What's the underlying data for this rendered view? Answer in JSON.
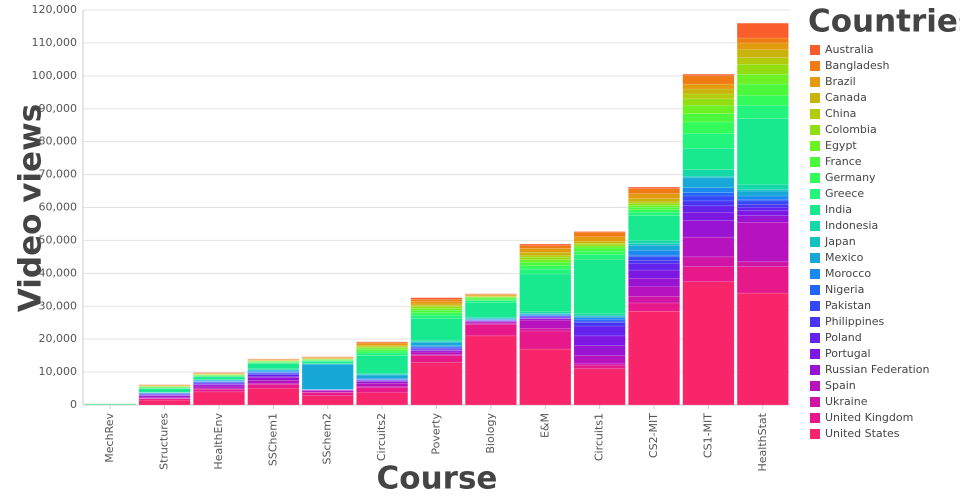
{
  "chart_data": {
    "type": "stacked_bar",
    "x_label": "Course",
    "y_label": "Video views",
    "legend_title": "Countries",
    "legend_position": "right",
    "grid": true,
    "categories": [
      "MechRev",
      "Structures",
      "HealthEnv",
      "SSChem1",
      "SSchem2",
      "Circuits2",
      "Poverty",
      "Biology",
      "E&M",
      "Circuits1",
      "CS2-MIT",
      "CS1-MIT",
      "HealthStat"
    ],
    "ylim": [
      0,
      120000
    ],
    "yticks": [
      0,
      {
        "value": 10000,
        "label": "10,000"
      },
      {
        "value": 20000,
        "label": "20,000"
      },
      {
        "value": 30000,
        "label": "30,000"
      },
      {
        "value": 40000,
        "label": "40,000"
      },
      {
        "value": 50000,
        "label": "50,000"
      },
      {
        "value": 60000,
        "label": "60,000"
      },
      {
        "value": 70000,
        "label": "70,000"
      },
      {
        "value": 80000,
        "label": "80,000"
      },
      {
        "value": 90000,
        "label": "90,000"
      },
      {
        "value": 100000,
        "label": "100,000"
      },
      {
        "value": 110000,
        "label": "110,000"
      },
      {
        "value": 120000,
        "label": "120,000"
      }
    ],
    "series": [
      {
        "name": "Australia",
        "color": "#f95d2c",
        "values": [
          0,
          50,
          100,
          100,
          100,
          200,
          500,
          100,
          500,
          300,
          500,
          500,
          4500
        ]
      },
      {
        "name": "Bangladesh",
        "color": "#f07a14",
        "values": [
          10,
          100,
          100,
          100,
          200,
          300,
          600,
          200,
          800,
          1200,
          1500,
          2500,
          1500
        ]
      },
      {
        "name": "Brazil",
        "color": "#e39a0f",
        "values": [
          10,
          200,
          200,
          200,
          200,
          600,
          800,
          300,
          1200,
          1500,
          1500,
          1500,
          2000
        ]
      },
      {
        "name": "Canada",
        "color": "#c9b40b",
        "values": [
          10,
          100,
          100,
          100,
          100,
          300,
          500,
          200,
          1000,
          600,
          1000,
          1500,
          2500
        ]
      },
      {
        "name": "China",
        "color": "#b2cc0b",
        "values": [
          0,
          50,
          50,
          100,
          50,
          200,
          300,
          100,
          500,
          300,
          500,
          1500,
          2000
        ]
      },
      {
        "name": "Colombia",
        "color": "#93de12",
        "values": [
          10,
          100,
          100,
          100,
          100,
          300,
          500,
          200,
          800,
          500,
          500,
          2000,
          3000
        ]
      },
      {
        "name": "Egypt",
        "color": "#6cf124",
        "values": [
          10,
          100,
          100,
          100,
          100,
          400,
          600,
          200,
          800,
          600,
          600,
          2500,
          3000
        ]
      },
      {
        "name": "France",
        "color": "#4bf83b",
        "values": [
          20,
          200,
          200,
          200,
          200,
          500,
          800,
          400,
          1000,
          1000,
          800,
          2500,
          3500
        ]
      },
      {
        "name": "Germany",
        "color": "#33fb5a",
        "values": [
          20,
          200,
          200,
          200,
          200,
          600,
          800,
          400,
          1000,
          1000,
          800,
          3500,
          3000
        ]
      },
      {
        "name": "Greece",
        "color": "#23f47c",
        "values": [
          30,
          200,
          200,
          300,
          300,
          800,
          1000,
          500,
          1500,
          1500,
          1000,
          4500,
          4000
        ]
      },
      {
        "name": "India",
        "color": "#18e88e",
        "values": [
          250,
          1000,
          700,
          1500,
          500,
          5400,
          6500,
          4500,
          11500,
          16500,
          7500,
          6500,
          20000
        ]
      },
      {
        "name": "Indonesia",
        "color": "#14d8a8",
        "values": [
          10,
          100,
          200,
          300,
          100,
          300,
          500,
          300,
          500,
          500,
          1000,
          2000,
          1500
        ]
      },
      {
        "name": "Japan",
        "color": "#14c2c2",
        "values": [
          0,
          50,
          100,
          100,
          200,
          200,
          200,
          100,
          100,
          200,
          500,
          500,
          500
        ]
      },
      {
        "name": "Mexico",
        "color": "#17a8d8",
        "values": [
          10,
          100,
          300,
          400,
          7500,
          1000,
          1000,
          300,
          300,
          500,
          1500,
          3000,
          1500
        ]
      },
      {
        "name": "Morocco",
        "color": "#1b8aee",
        "values": [
          0,
          50,
          100,
          200,
          50,
          300,
          300,
          100,
          200,
          500,
          1500,
          1500,
          1000
        ]
      },
      {
        "name": "Nigeria",
        "color": "#2266f7",
        "values": [
          0,
          100,
          100,
          200,
          50,
          100,
          200,
          100,
          100,
          500,
          500,
          1000,
          500
        ]
      },
      {
        "name": "Pakistan",
        "color": "#3448f8",
        "values": [
          0,
          200,
          200,
          300,
          50,
          100,
          300,
          100,
          200,
          500,
          1000,
          1500,
          1000
        ]
      },
      {
        "name": "Philippines",
        "color": "#4a34f3",
        "values": [
          0,
          100,
          200,
          300,
          50,
          100,
          200,
          100,
          200,
          1000,
          1000,
          1500,
          1000
        ]
      },
      {
        "name": "Poland",
        "color": "#6422ec",
        "values": [
          0,
          200,
          300,
          500,
          50,
          200,
          300,
          100,
          300,
          3000,
          2000,
          2000,
          1000
        ]
      },
      {
        "name": "Portugal",
        "color": "#7d18e2",
        "values": [
          0,
          200,
          200,
          300,
          50,
          200,
          200,
          100,
          200,
          3000,
          2500,
          2500,
          1500
        ]
      },
      {
        "name": "Russian Federation",
        "color": "#9914d2",
        "values": [
          10,
          400,
          600,
          900,
          100,
          500,
          400,
          200,
          400,
          3000,
          2500,
          5000,
          2000
        ]
      },
      {
        "name": "Spain",
        "color": "#b612be",
        "values": [
          10,
          300,
          500,
          1000,
          500,
          1000,
          800,
          500,
          2500,
          2500,
          3000,
          6000,
          12000
        ]
      },
      {
        "name": "Ukraine",
        "color": "#d014a6",
        "values": [
          0,
          200,
          200,
          300,
          100,
          300,
          300,
          200,
          800,
          500,
          2000,
          3000,
          1500
        ]
      },
      {
        "name": "United Kingdom",
        "color": "#e6188a",
        "values": [
          20,
          400,
          800,
          1200,
          1000,
          1500,
          2000,
          3500,
          5500,
          1000,
          2500,
          4500,
          8000
        ]
      },
      {
        "name": "United States",
        "color": "#f8256b",
        "values": [
          50,
          1500,
          4000,
          5000,
          2800,
          3800,
          13000,
          21000,
          17000,
          11000,
          28500,
          37500,
          34000
        ]
      }
    ]
  }
}
